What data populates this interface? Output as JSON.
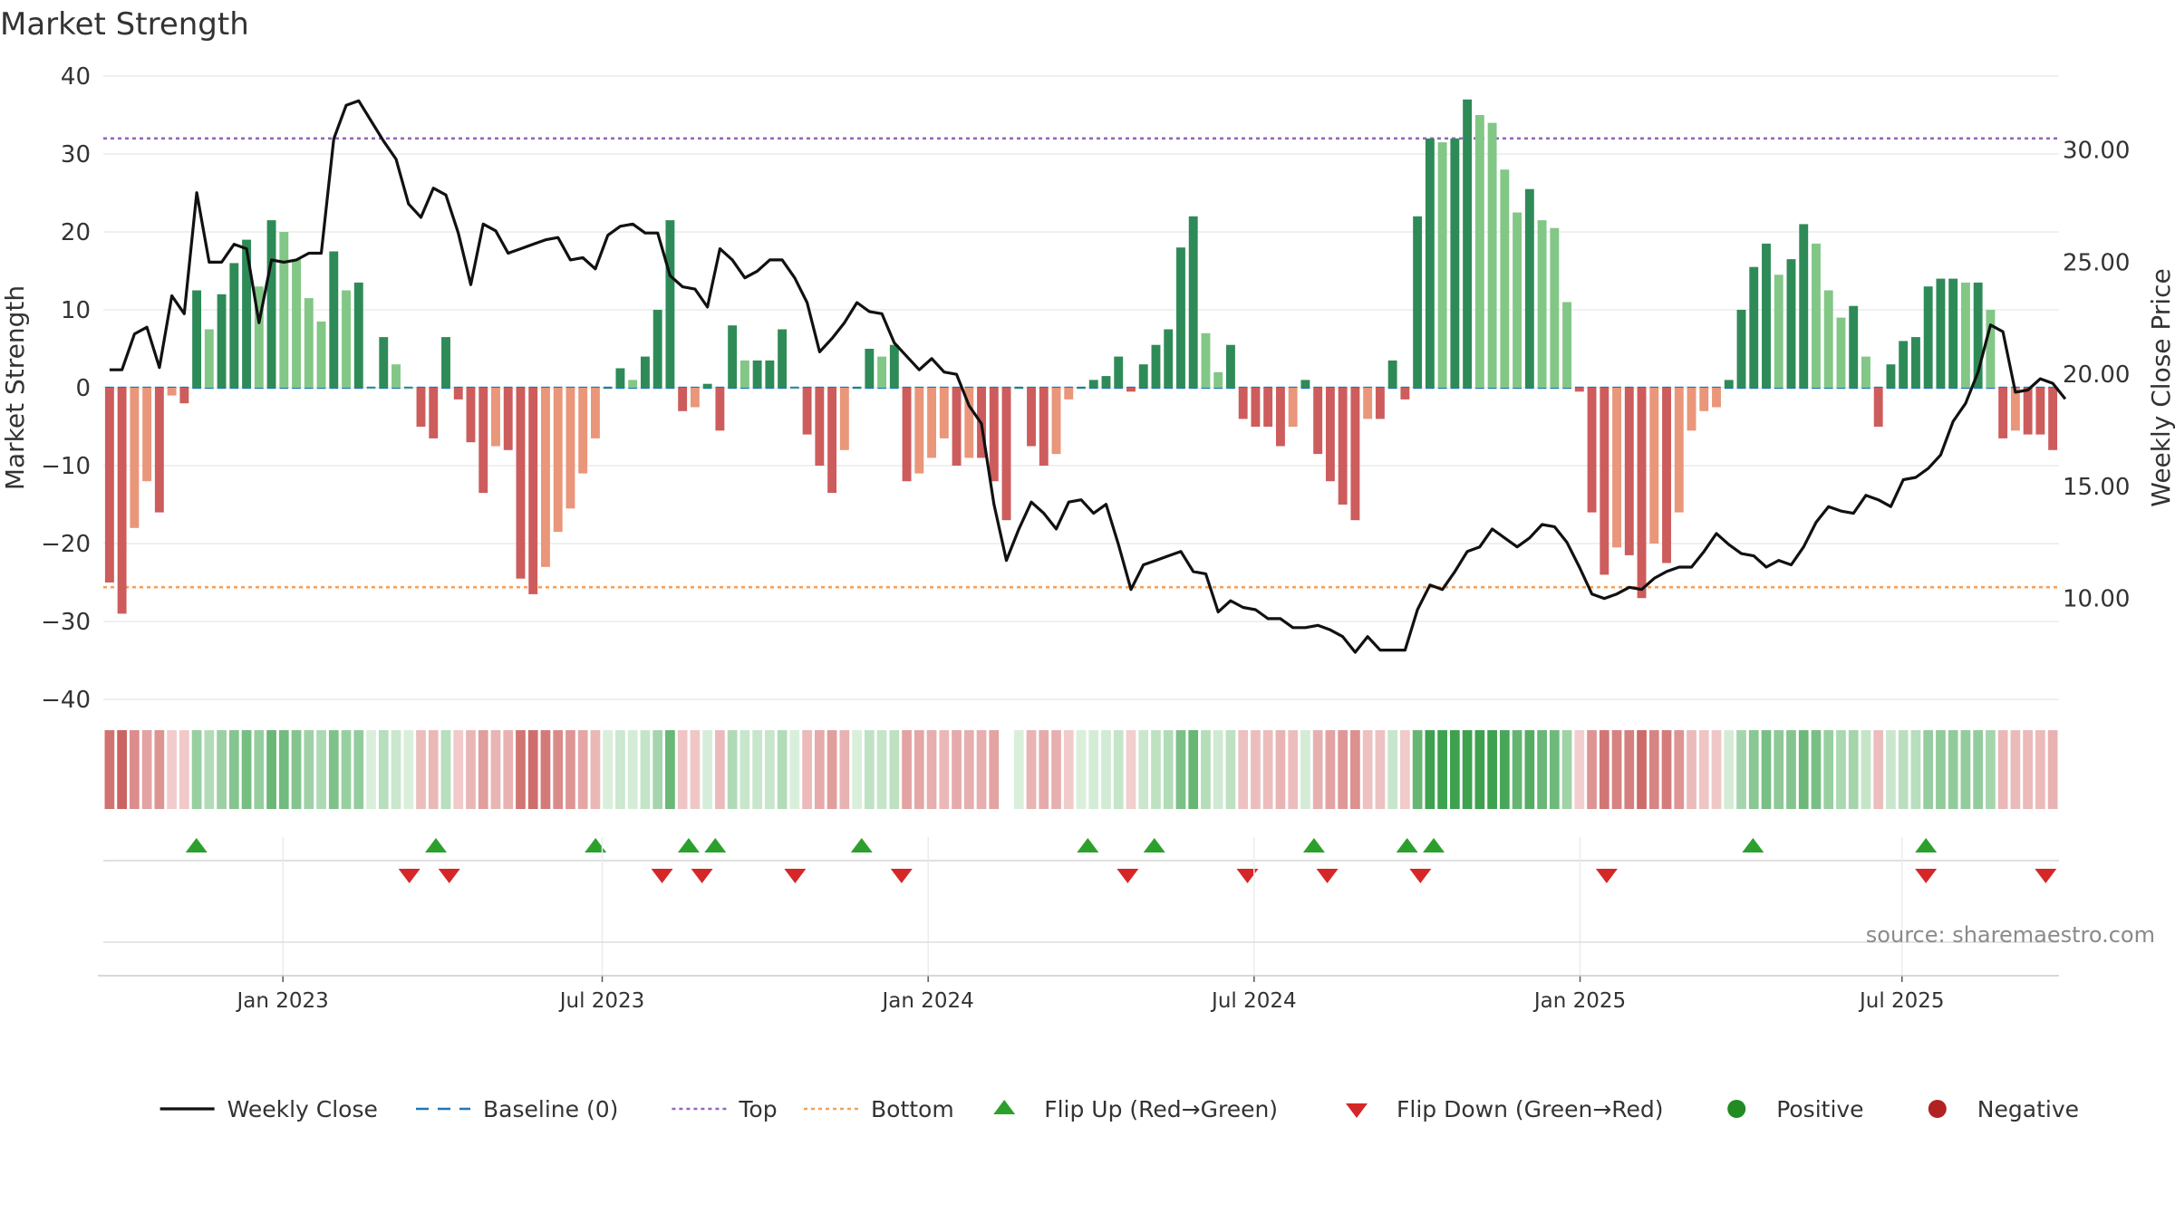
{
  "chart_data": {
    "type": "bar",
    "title": "Market Strength",
    "source": "source: sharemaestro.com",
    "ylabel": "Market Strength",
    "y2label": "Weekly Close Price",
    "ylim": [
      -40,
      40
    ],
    "y2lim": [
      5.5,
      33.3
    ],
    "yticks": [
      -40,
      -30,
      -20,
      -10,
      0,
      10,
      20,
      30,
      40
    ],
    "y2ticks": [
      10,
      15,
      20,
      25,
      30
    ],
    "ytick_labels": [
      "−40",
      "−30",
      "−20",
      "−10",
      "0",
      "10",
      "20",
      "30",
      "40"
    ],
    "y2tick_labels": [
      "10.00",
      "15.00",
      "20.00",
      "25.00",
      "30.00"
    ],
    "x_range": [
      0,
      147
    ],
    "xticks": [
      {
        "x": 13.5,
        "label": "Jan 2023"
      },
      {
        "x": 37.5,
        "label": "Jul 2023"
      },
      {
        "x": 62.0,
        "label": "Jan 2024"
      },
      {
        "x": 86.5,
        "label": "Jul 2024"
      },
      {
        "x": 111.0,
        "label": "Jan 2025"
      },
      {
        "x": 135.2,
        "label": "Jul 2025"
      }
    ],
    "top_level": 32,
    "bottom_level": -25.6,
    "strength": [
      -25,
      -29,
      -18,
      -12,
      -16,
      -1,
      -2,
      12.5,
      7.5,
      12,
      16,
      19,
      13,
      21.5,
      20,
      16.5,
      11.5,
      8.5,
      17.5,
      12.5,
      13.5,
      0,
      6.5,
      3,
      0,
      -5,
      -6.5,
      6.5,
      -1.5,
      -7,
      -13.5,
      -7.5,
      -8,
      -24.5,
      -26.5,
      -23,
      -18.5,
      -15.5,
      -11,
      -6.5,
      0,
      2.5,
      1,
      4,
      10,
      21.5,
      -3,
      -2.5,
      0.5,
      -5.5,
      8,
      3.5,
      3.5,
      3.5,
      7.5,
      0,
      -6,
      -10,
      -13.5,
      -8,
      0,
      5,
      4,
      5.5,
      -12,
      -11,
      -9,
      -6.5,
      -10,
      -9,
      -9,
      -12,
      -17,
      0,
      -7.5,
      -10,
      -8.5,
      -1.5,
      0,
      1,
      1.5,
      4,
      -0.5,
      3,
      5.5,
      7.5,
      18,
      22,
      7,
      2,
      5.5,
      -4,
      -5,
      -5,
      -7.5,
      -5,
      1,
      -8.5,
      -12,
      -15,
      -17,
      -4,
      -4,
      3.5,
      -1.5,
      22,
      32,
      31.5,
      32,
      37,
      35,
      34,
      28,
      22.5,
      25.5,
      21.5,
      20.5,
      11,
      -0.5,
      -16,
      -24,
      -20.5,
      -21.5,
      -27,
      -20,
      -22.5,
      -16,
      -5.5,
      -3,
      -2.5,
      1,
      10,
      15.5,
      18.5,
      14.5,
      16.5,
      21,
      18.5,
      12.5,
      9,
      10.5,
      4,
      -5,
      3,
      6,
      6.5,
      13,
      14,
      14,
      13.5,
      13.5,
      10,
      -6.5,
      -5.5,
      -6,
      -6,
      -8
    ],
    "weekly_close": [
      20.2,
      20.2,
      21.8,
      22.1,
      20.3,
      23.5,
      22.7,
      28.1,
      25.0,
      25.0,
      25.8,
      25.6,
      22.3,
      25.1,
      25.0,
      25.1,
      25.4,
      25.4,
      30.5,
      32.0,
      32.2,
      31.3,
      30.4,
      29.6,
      27.6,
      27.0,
      28.3,
      28.0,
      26.3,
      24.0,
      26.7,
      26.4,
      25.4,
      25.6,
      25.8,
      26.0,
      26.1,
      25.1,
      25.2,
      24.7,
      26.2,
      26.6,
      26.7,
      26.3,
      26.3,
      24.4,
      23.9,
      23.8,
      23.0,
      25.6,
      25.1,
      24.3,
      24.6,
      25.1,
      25.1,
      24.3,
      23.2,
      21.0,
      21.6,
      22.3,
      23.2,
      22.8,
      22.7,
      21.4,
      20.8,
      20.2,
      20.7,
      20.1,
      20.0,
      18.6,
      17.8,
      14.2,
      11.7,
      13.1,
      14.3,
      13.8,
      13.1,
      14.3,
      14.4,
      13.8,
      14.2,
      12.4,
      10.4,
      11.5,
      11.7,
      11.9,
      12.1,
      11.2,
      11.1,
      9.4,
      9.9,
      9.6,
      9.5,
      9.1,
      9.1,
      8.7,
      8.7,
      8.8,
      8.6,
      8.3,
      7.6,
      8.3,
      7.7,
      7.7,
      7.7,
      9.5,
      10.6,
      10.4,
      11.2,
      12.1,
      12.3,
      13.1,
      12.7,
      12.3,
      12.7,
      13.3,
      13.2,
      12.5,
      11.4,
      10.2,
      10.0,
      10.2,
      10.5,
      10.4,
      10.9,
      11.2,
      11.4,
      11.4,
      12.1,
      12.9,
      12.4,
      12.0,
      11.9,
      11.4,
      11.7,
      11.5,
      12.3,
      13.4,
      14.1,
      13.9,
      13.8,
      14.6,
      14.4,
      14.1,
      15.3,
      15.4,
      15.8,
      16.4,
      17.9,
      18.7,
      20.1,
      22.2,
      21.9,
      19.2,
      19.3,
      19.8,
      19.6,
      18.9
    ],
    "flip_up_x": [
      7,
      25,
      37,
      44,
      46,
      57,
      74,
      79,
      91,
      98,
      100,
      124,
      137
    ],
    "flip_down_x": [
      23,
      26,
      42,
      45,
      52,
      60,
      77,
      86,
      92,
      99,
      113,
      137,
      146
    ],
    "gap_index": 72,
    "palette": {
      "pos_dark": "#2e8b57",
      "pos_light": "#82c786",
      "neg_dark": "#cd5c5c",
      "neg_light": "#e9967a",
      "line": "#111111",
      "baseline": "#1f77b4",
      "top": "#9467bd",
      "bottom": "#f5a05a",
      "flip_up": "#2ca02c",
      "flip_down": "#d62728",
      "positive": "#228b22",
      "negative": "#b22222",
      "grid": "#e6e6e6"
    },
    "legend": [
      {
        "key": "weekly_close",
        "label": "Weekly Close"
      },
      {
        "key": "baseline",
        "label": "Baseline (0)"
      },
      {
        "key": "top",
        "label": "Top"
      },
      {
        "key": "bottom",
        "label": "Bottom"
      },
      {
        "key": "flip_up",
        "label": "Flip Up (Red→Green)"
      },
      {
        "key": "flip_down",
        "label": "Flip Down (Green→Red)"
      },
      {
        "key": "positive",
        "label": "Positive"
      },
      {
        "key": "negative",
        "label": "Negative"
      }
    ]
  }
}
